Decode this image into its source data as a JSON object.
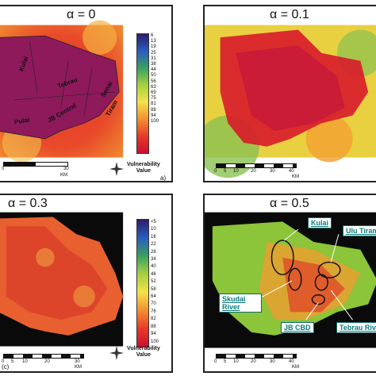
{
  "panels": [
    {
      "id": "a",
      "title": "α = 0",
      "corner": "a)",
      "vuln_label": "Vulnerability\nValue",
      "scale": [
        "0",
        "30"
      ],
      "scale_unit": "KM",
      "legend": [
        "6",
        "13",
        "19",
        "25",
        "31",
        "38",
        "44",
        "50",
        "56",
        "63",
        "69",
        "75",
        "81",
        "88",
        "94",
        "100"
      ]
    },
    {
      "id": "b",
      "title": "α = 0.1",
      "scale": [
        "0",
        "5",
        "10",
        "20",
        "30",
        "40"
      ],
      "scale_unit": "KM"
    },
    {
      "id": "c",
      "title": "α = 0.3",
      "corner": "(c)",
      "vuln_label": "Vulnerability\nValue",
      "scale": [
        "0",
        "5",
        "10",
        "20",
        "30"
      ],
      "scale_unit": "KM",
      "legend": [
        "<5",
        "10",
        "16",
        "22",
        "28",
        "34",
        "40",
        "46",
        "52",
        "58",
        "64",
        "70",
        "76",
        "82",
        "88",
        "94",
        "100"
      ]
    },
    {
      "id": "d",
      "title": "α = 0.5",
      "scale": [
        "0",
        "5",
        "10",
        "20",
        "30",
        "40"
      ],
      "scale_unit": "KM"
    }
  ],
  "regions_a": [
    "Kulai",
    "Tebrau",
    "Pulai",
    "JB Central",
    "Senai",
    "Tiram"
  ],
  "callouts_d": [
    "Kulai",
    "Ulu Tiram",
    "Skudai River",
    "JB CBD",
    "Tebrau River"
  ],
  "colors": {
    "legend_top": "#2b1e6b",
    "legend_mid": "#f2e24a",
    "legend_bottom": "#cc1030",
    "map_red": "#d81a2a",
    "map_purple": "#8e1a5c"
  }
}
